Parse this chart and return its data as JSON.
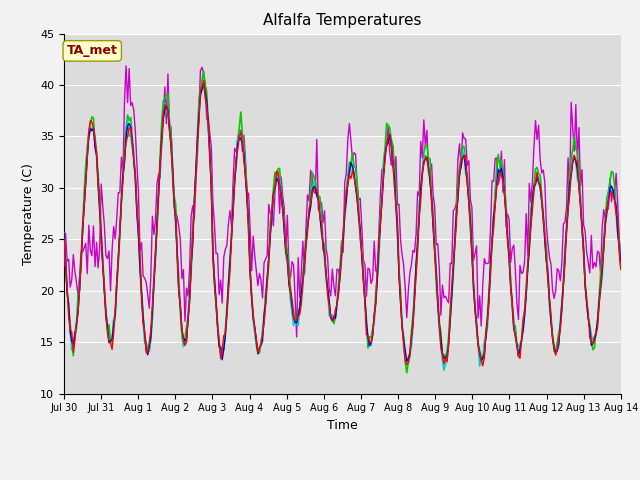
{
  "title": "Alfalfa Temperatures",
  "xlabel": "Time",
  "ylabel": "Temperature (C)",
  "ylim": [
    10,
    45
  ],
  "yticks": [
    10,
    15,
    20,
    25,
    30,
    35,
    40,
    45
  ],
  "annotation_text": "TA_met",
  "annotation_color": "#8B0000",
  "annotation_bg": "#FFFFCC",
  "line_colors": {
    "PanelT": "#FF0000",
    "HMP60": "#0000CC",
    "NR01_PRT": "#00CC00",
    "SonicT": "#CC00CC",
    "AM25T_PRT": "#00CCCC"
  },
  "xtick_labels": [
    "Jul 30",
    "Jul 31",
    "Aug 1",
    "Aug 2",
    "Aug 3",
    "Aug 4",
    "Aug 5",
    "Aug 6",
    "Aug 7",
    "Aug 8",
    "Aug 9",
    "Aug 10",
    "Aug 11",
    "Aug 12",
    "Aug 13",
    "Aug 14"
  ],
  "bg_color": "#DCDCDC",
  "fig_bg": "#F2F2F2",
  "shaded_region": [
    15,
    35
  ],
  "shaded_color": "#E8E8E8"
}
